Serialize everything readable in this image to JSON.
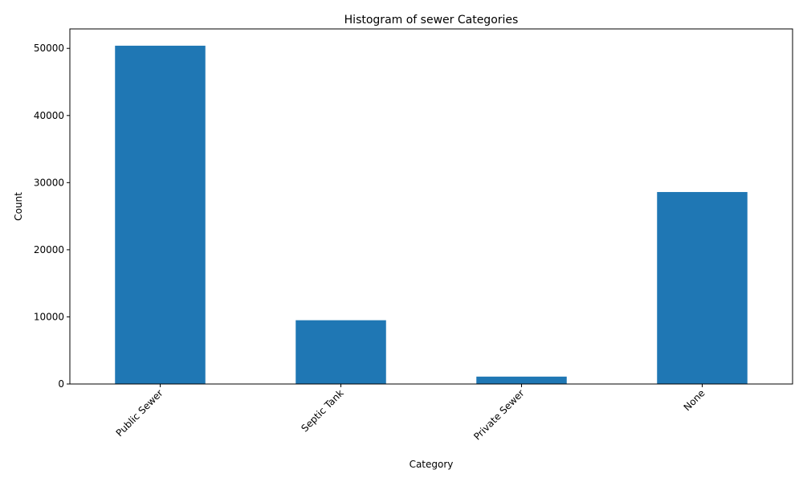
{
  "chart_data": {
    "type": "bar",
    "title": "Histogram of sewer Categories",
    "xlabel": "Category",
    "ylabel": "Count",
    "categories": [
      "Public Sewer",
      "Septic Tank",
      "Private Sewer",
      "None"
    ],
    "values": [
      50400,
      9500,
      1100,
      28600
    ],
    "ylim": [
      0,
      52900
    ],
    "yticks": [
      0,
      10000,
      20000,
      30000,
      40000,
      50000
    ],
    "bar_color": "#1f77b4",
    "grid": false,
    "legend": false
  }
}
